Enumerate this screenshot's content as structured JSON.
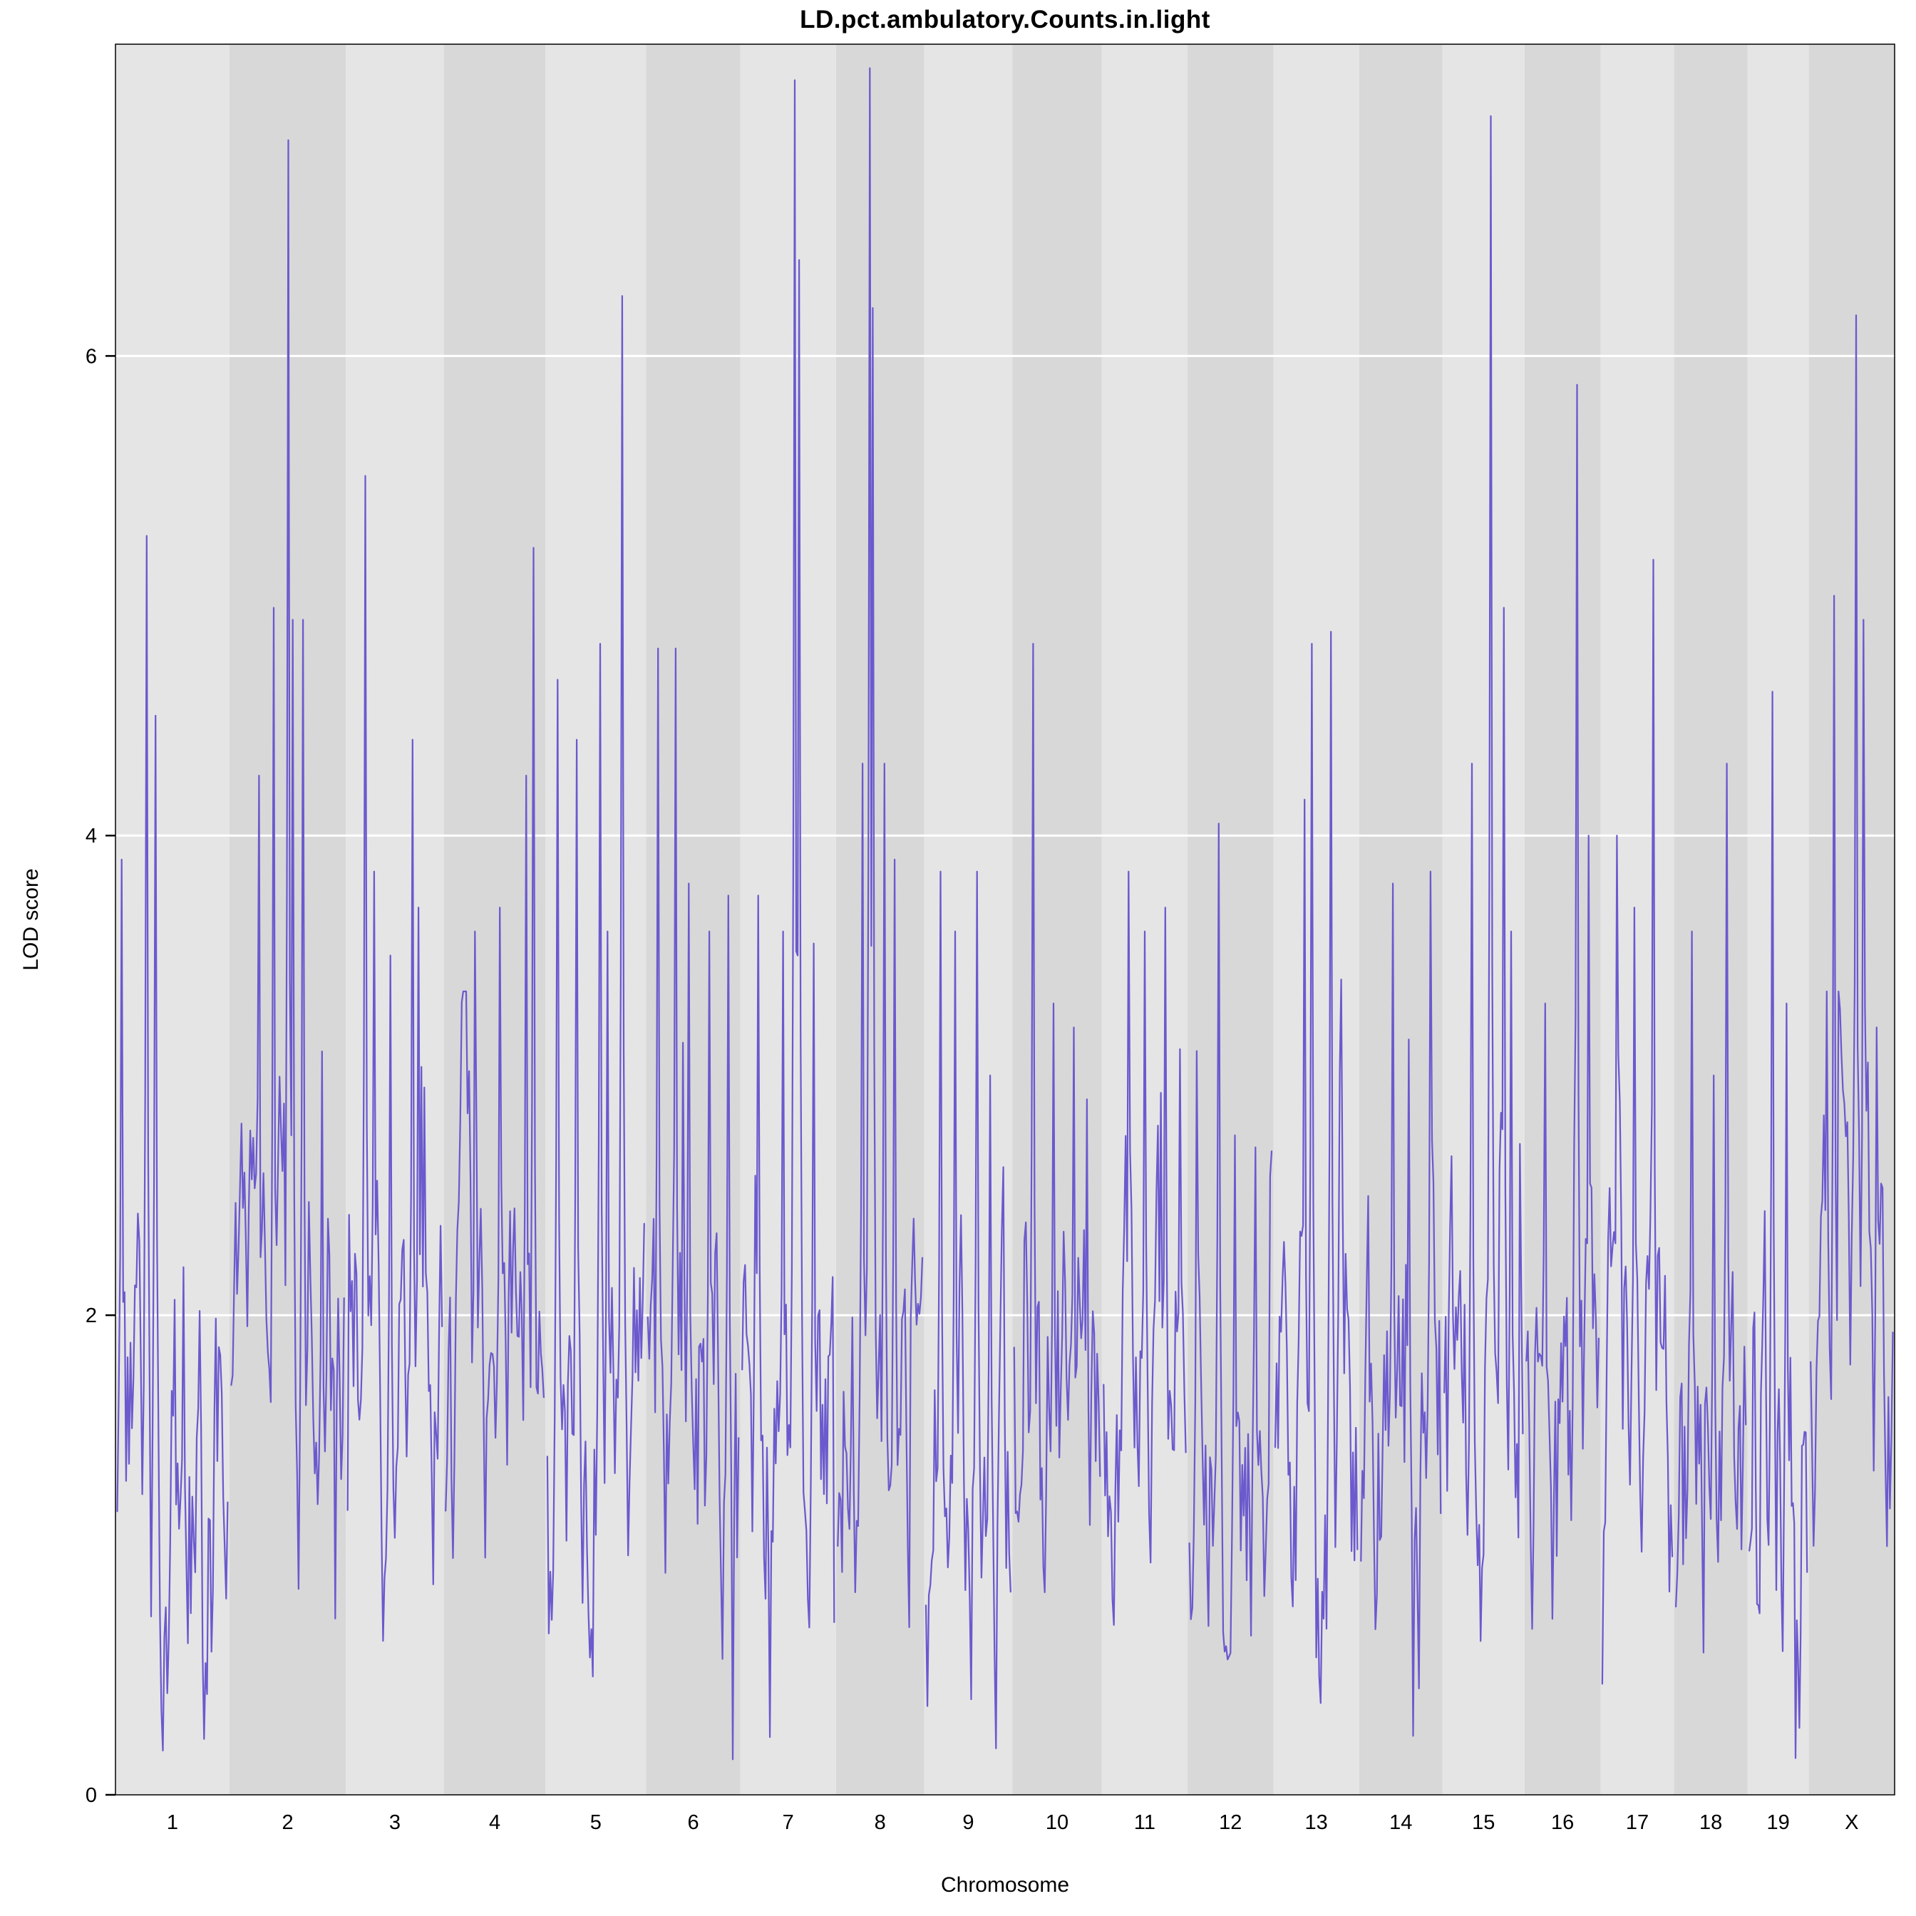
{
  "chart_data": {
    "type": "line",
    "title": "LD.pct.ambulatory.Counts.in.light",
    "xlabel": "Chromosome",
    "ylabel": "LOD score",
    "ylim": [
      0,
      7.3
    ],
    "yticks": [
      0,
      2,
      4,
      6
    ],
    "grid": "horizontal white gridlines at y ticks over alternating gray chromosome bands",
    "legend": "none",
    "line_color": "#6A5ACD",
    "band_colors": [
      "#E5E5E5",
      "#D8D8D8"
    ],
    "axis_color": "#000000",
    "x_tick_labels": [
      "1",
      "2",
      "3",
      "4",
      "5",
      "6",
      "7",
      "8",
      "9",
      "10",
      "11",
      "12",
      "13",
      "14",
      "15",
      "16",
      "17",
      "18",
      "19",
      "X"
    ],
    "chromosomes": [
      {
        "label": "1",
        "rel_width": 93,
        "baseline": 1.25,
        "peaks": [
          [
            0.04,
            3.9
          ],
          [
            0.27,
            5.25
          ],
          [
            0.34,
            4.5
          ],
          [
            0.6,
            2.2
          ]
        ]
      },
      {
        "label": "2",
        "rel_width": 95,
        "baseline": 2.0,
        "peaks": [
          [
            0.25,
            4.25
          ],
          [
            0.38,
            4.95
          ],
          [
            0.5,
            6.9
          ],
          [
            0.55,
            4.9
          ],
          [
            0.63,
            4.9
          ],
          [
            0.8,
            3.1
          ]
        ]
      },
      {
        "label": "3",
        "rel_width": 80,
        "baseline": 1.6,
        "peaks": [
          [
            0.18,
            5.5
          ],
          [
            0.28,
            3.85
          ],
          [
            0.45,
            3.5
          ],
          [
            0.68,
            4.4
          ],
          [
            0.75,
            3.7
          ]
        ]
      },
      {
        "label": "4",
        "rel_width": 83,
        "baseline": 1.6,
        "peaks": [
          [
            0.3,
            3.6
          ],
          [
            0.55,
            3.7
          ],
          [
            0.82,
            4.25
          ],
          [
            0.9,
            5.2
          ]
        ]
      },
      {
        "label": "5",
        "rel_width": 82,
        "baseline": 1.5,
        "peaks": [
          [
            0.1,
            4.65
          ],
          [
            0.3,
            4.4
          ],
          [
            0.55,
            4.8
          ],
          [
            0.62,
            3.6
          ],
          [
            0.78,
            6.25
          ]
        ]
      },
      {
        "label": "6",
        "rel_width": 77,
        "baseline": 1.5,
        "peaks": [
          [
            0.12,
            4.78
          ],
          [
            0.3,
            4.78
          ],
          [
            0.45,
            3.8
          ],
          [
            0.68,
            3.6
          ],
          [
            0.88,
            3.75
          ]
        ]
      },
      {
        "label": "7",
        "rel_width": 78,
        "baseline": 1.3,
        "peaks": [
          [
            0.18,
            3.75
          ],
          [
            0.45,
            3.6
          ],
          [
            0.57,
            7.15
          ],
          [
            0.62,
            6.4
          ],
          [
            0.78,
            3.55
          ]
        ]
      },
      {
        "label": "8",
        "rel_width": 72,
        "baseline": 1.4,
        "peaks": [
          [
            0.3,
            4.3
          ],
          [
            0.38,
            7.2
          ],
          [
            0.42,
            6.2
          ],
          [
            0.55,
            4.3
          ],
          [
            0.68,
            3.9
          ]
        ]
      },
      {
        "label": "9",
        "rel_width": 72,
        "baseline": 1.3,
        "peaks": [
          [
            0.18,
            3.85
          ],
          [
            0.35,
            3.6
          ],
          [
            0.6,
            3.85
          ],
          [
            0.75,
            3.0
          ]
        ]
      },
      {
        "label": "10",
        "rel_width": 73,
        "baseline": 1.4,
        "peaks": [
          [
            0.22,
            4.8
          ],
          [
            0.45,
            3.3
          ],
          [
            0.7,
            3.2
          ],
          [
            0.85,
            2.9
          ]
        ]
      },
      {
        "label": "11",
        "rel_width": 70,
        "baseline": 1.8,
        "peaks": [
          [
            0.3,
            3.85
          ],
          [
            0.5,
            3.6
          ],
          [
            0.75,
            3.7
          ]
        ]
      },
      {
        "label": "12",
        "rel_width": 70,
        "baseline": 1.2,
        "peaks": [
          [
            0.35,
            4.05
          ],
          [
            0.55,
            2.75
          ],
          [
            0.8,
            2.7
          ]
        ]
      },
      {
        "label": "13",
        "rel_width": 70,
        "baseline": 1.5,
        "peaks": [
          [
            0.35,
            4.15
          ],
          [
            0.45,
            4.8
          ],
          [
            0.68,
            4.85
          ],
          [
            0.8,
            3.4
          ]
        ]
      },
      {
        "label": "14",
        "rel_width": 68,
        "baseline": 1.4,
        "peaks": [
          [
            0.4,
            3.8
          ],
          [
            0.6,
            3.15
          ],
          [
            0.88,
            3.85
          ]
        ]
      },
      {
        "label": "15",
        "rel_width": 67,
        "baseline": 1.6,
        "peaks": [
          [
            0.35,
            4.3
          ],
          [
            0.6,
            7.0
          ],
          [
            0.75,
            4.95
          ],
          [
            0.85,
            3.6
          ]
        ]
      },
      {
        "label": "16",
        "rel_width": 62,
        "baseline": 1.5,
        "peaks": [
          [
            0.25,
            3.3
          ],
          [
            0.7,
            5.88
          ],
          [
            0.85,
            4.0
          ]
        ]
      },
      {
        "label": "17",
        "rel_width": 60,
        "baseline": 1.5,
        "peaks": [
          [
            0.2,
            4.0
          ],
          [
            0.45,
            3.7
          ],
          [
            0.72,
            5.15
          ]
        ]
      },
      {
        "label": "18",
        "rel_width": 60,
        "baseline": 1.4,
        "peaks": [
          [
            0.22,
            3.6
          ],
          [
            0.55,
            3.0
          ],
          [
            0.72,
            4.3
          ]
        ]
      },
      {
        "label": "19",
        "rel_width": 50,
        "baseline": 1.3,
        "peaks": [
          [
            0.4,
            4.6
          ],
          [
            0.65,
            3.3
          ]
        ]
      },
      {
        "label": "X",
        "rel_width": 70,
        "baseline": 1.9,
        "peaks": [
          [
            0.28,
            5.0
          ],
          [
            0.55,
            6.17
          ],
          [
            0.65,
            4.9
          ],
          [
            0.8,
            3.2
          ]
        ]
      }
    ]
  }
}
